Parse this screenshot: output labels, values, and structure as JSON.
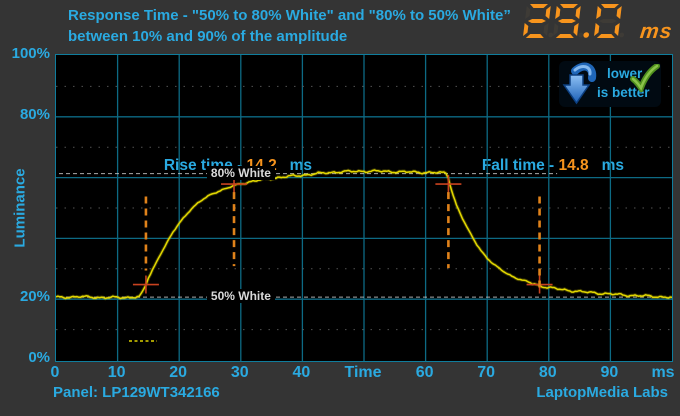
{
  "title": {
    "line1": "Response Time - \"50% to 80% White\" and \"80% to 50% White”",
    "line2": "between 10% and 90% of the amplitude"
  },
  "result": {
    "value": "29.0",
    "unit": "ms"
  },
  "badge": {
    "line1": "lower",
    "line2": "is better"
  },
  "axes": {
    "y_label": "Luminance",
    "y_ticks": [
      {
        "label": "100%",
        "pct": 100
      },
      {
        "label": "80%",
        "pct": 80
      },
      {
        "label": "20%",
        "pct": 20
      },
      {
        "label": "0%",
        "pct": 0
      }
    ],
    "x_ticks": [
      {
        "label": "0",
        "t": 0
      },
      {
        "label": "10",
        "t": 10
      },
      {
        "label": "20",
        "t": 20
      },
      {
        "label": "30",
        "t": 30
      },
      {
        "label": "40",
        "t": 40
      },
      {
        "label": "Time",
        "t": 50
      },
      {
        "label": "60",
        "t": 60
      },
      {
        "label": "70",
        "t": 70
      },
      {
        "label": "80",
        "t": 80
      },
      {
        "label": "90",
        "t": 90
      },
      {
        "label": "ms",
        "t": 100
      }
    ]
  },
  "annotations": {
    "rise": {
      "prefix": "Rise time - ",
      "value": "14.2",
      "unit": "   ms"
    },
    "fall": {
      "prefix": "Fall time - ",
      "value": "14.8",
      "unit": "   ms"
    }
  },
  "footer": {
    "panel": "Panel: LP129WT342166",
    "lab": "LaptopMedia Labs"
  },
  "colors": {
    "accent_cyan": "#2aaae1",
    "accent_orange": "#f7941d",
    "trace_yellow": "#e3d800",
    "grid_teal": "#0d6a84",
    "minor_grid_gray": "#5c5c5c",
    "marker_orange": "#e0821a",
    "cross_red": "#c8421f",
    "level_white": "#c9c9c9",
    "bg_outer": "#343434",
    "bg_plot": "#000000",
    "check_green": "#76b82a",
    "arrow_blue": "#2f7fd6"
  },
  "chart_data": {
    "type": "line",
    "title": "Response Time - \"50% to 80% White\" and \"80% to 50% White” between 10% and 90% of the amplitude",
    "xlabel": "Time (ms)",
    "ylabel": "Luminance (%)",
    "xlim": [
      0,
      100
    ],
    "ylim": [
      0,
      100
    ],
    "grid": true,
    "result_ms": 29.0,
    "amplitude": {
      "base_pct": 20.7,
      "top_pct": 62.0
    },
    "reference_levels": [
      {
        "label": "80% White",
        "pct": 61.3,
        "x_end_ms": 82,
        "label_x_ms": 24.5
      },
      {
        "label": "50% White",
        "pct": 20.7,
        "x_end_ms": 100,
        "label_x_ms": 24.5
      }
    ],
    "markers": {
      "rise": {
        "t10": 14.6,
        "t90": 28.9,
        "value_ms": 14.2
      },
      "fall": {
        "t90": 63.7,
        "t10": 78.5,
        "value_ms": 14.8
      }
    },
    "series": [
      {
        "name": "luminance_response",
        "x": [
          0,
          4,
          8,
          12,
          13.5,
          14,
          14.6,
          15,
          16,
          17,
          18,
          19,
          20,
          21,
          22,
          23,
          24,
          25,
          26,
          27,
          28,
          28.9,
          30,
          31,
          32,
          34,
          36,
          38,
          40,
          42,
          44,
          46,
          48,
          50,
          52,
          54,
          56,
          58,
          60,
          62,
          63.3,
          63.7,
          64,
          64.5,
          65,
          66,
          67,
          68,
          69,
          70,
          71,
          72,
          73,
          74,
          75,
          76,
          77,
          78,
          78.6,
          80,
          82,
          84,
          86,
          88,
          90,
          92,
          94,
          96,
          98,
          100
        ],
        "y": [
          20.6,
          20.8,
          20.5,
          20.6,
          20.8,
          22,
          24.7,
          27,
          31,
          35,
          38.5,
          42,
          45,
          47.5,
          49.8,
          51.5,
          53,
          54.3,
          55.2,
          56,
          56.6,
          57.4,
          58,
          58.4,
          58.8,
          59.5,
          60,
          60.4,
          60.8,
          61.2,
          61.6,
          61.9,
          62,
          62.1,
          62.1,
          62,
          61.9,
          61.8,
          61.7,
          61.6,
          61.5,
          60,
          57.5,
          54,
          51,
          46.5,
          42.5,
          39,
          36,
          33.5,
          31.5,
          30,
          28.7,
          27.6,
          26.7,
          26,
          25.4,
          24.8,
          24.4,
          23.8,
          23.2,
          22.7,
          22.3,
          22,
          21.7,
          21.4,
          21.2,
          21,
          20.8,
          20.6
        ]
      }
    ]
  }
}
